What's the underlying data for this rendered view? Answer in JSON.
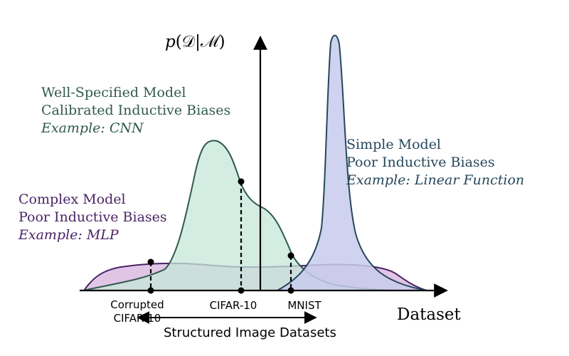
{
  "axes": {
    "y_label_italic_p": "p",
    "y_label_open": "(",
    "y_label_d": "𝒟",
    "y_label_bar": "|",
    "y_label_m": "ℳ",
    "y_label_close": ")",
    "x_label": "Dataset"
  },
  "models": {
    "well_specified": {
      "line1": "Well-Specified Model",
      "line2": "Calibrated Inductive Biases",
      "example": "Example: CNN",
      "color": "#2f5a4c"
    },
    "simple": {
      "line1": "Simple Model",
      "line2": "Poor Inductive Biases",
      "example": "Example: Linear Function",
      "color": "#26475c"
    },
    "complex": {
      "line1": "Complex Model",
      "line2": "Poor Inductive Biases",
      "example": "Example: MLP",
      "color": "#4a2466"
    }
  },
  "datasets": {
    "corrupted_line1": "Corrupted",
    "corrupted_line2": "CIFAR-10",
    "cifar": "CIFAR-10",
    "mnist": "MNIST",
    "range_label": "Structured Image Datasets"
  },
  "colors": {
    "well_specified_fill": "#c6e7d9",
    "simple_fill": "#c8cbec",
    "complex_fill": "#dcbbe2",
    "overlap_fill": "#a9bec8",
    "axis": "#000000"
  }
}
